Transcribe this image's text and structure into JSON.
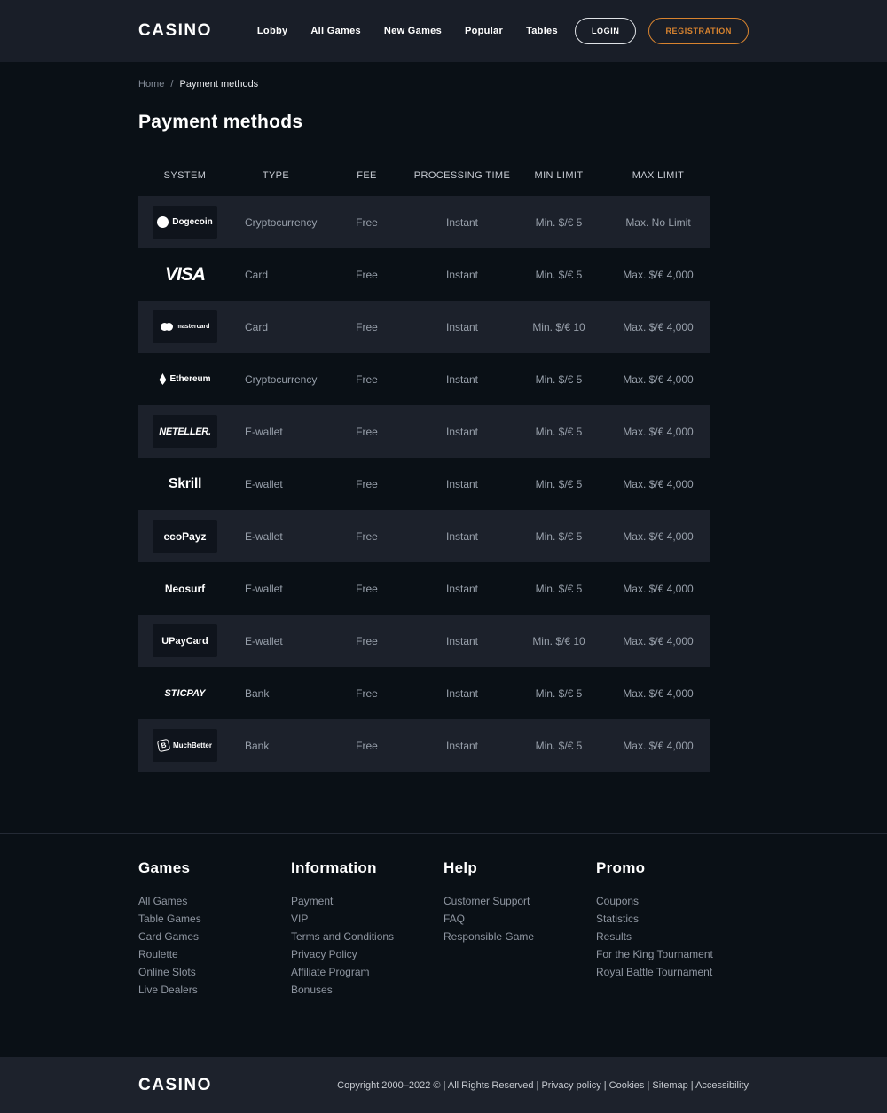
{
  "header": {
    "logo": "CASINO",
    "nav": [
      {
        "label": "Lobby"
      },
      {
        "label": "All Games"
      },
      {
        "label": "New Games"
      },
      {
        "label": "Popular"
      },
      {
        "label": "Tables"
      }
    ],
    "login_label": "LOGIN",
    "registration_label": "REGISTRATION"
  },
  "breadcrumb": {
    "home": "Home",
    "separator": "/",
    "current": "Payment methods"
  },
  "page": {
    "title": "Payment methods"
  },
  "table": {
    "headers": [
      "SYSTEM",
      "TYPE",
      "FEE",
      "PROCESSING TIME",
      "MIN LIMIT",
      "MAX LIMIT"
    ],
    "rows": [
      {
        "system": "Dogecoin",
        "logo": "dogecoin",
        "type": "Cryptocurrency",
        "fee": "Free",
        "processing_time": "Instant",
        "min_limit": "Min. $/€ 5",
        "max_limit": "Max. No Limit"
      },
      {
        "system": "VISA",
        "logo": "visa",
        "type": "Card",
        "fee": "Free",
        "processing_time": "Instant",
        "min_limit": "Min. $/€ 5",
        "max_limit": "Max. $/€ 4,000"
      },
      {
        "system": "mastercard",
        "logo": "mastercard",
        "type": "Card",
        "fee": "Free",
        "processing_time": "Instant",
        "min_limit": "Min. $/€ 10",
        "max_limit": "Max. $/€ 4,000"
      },
      {
        "system": "Ethereum",
        "logo": "ethereum",
        "type": "Cryptocurrency",
        "fee": "Free",
        "processing_time": "Instant",
        "min_limit": "Min. $/€ 5",
        "max_limit": "Max. $/€ 4,000"
      },
      {
        "system": "NETELLER.",
        "logo": "neteller",
        "type": "E-wallet",
        "fee": "Free",
        "processing_time": "Instant",
        "min_limit": "Min. $/€ 5",
        "max_limit": "Max. $/€ 4,000"
      },
      {
        "system": "Skrill",
        "logo": "skrill",
        "type": "E-wallet",
        "fee": "Free",
        "processing_time": "Instant",
        "min_limit": "Min. $/€ 5",
        "max_limit": "Max. $/€ 4,000"
      },
      {
        "system": "ecoPayz",
        "logo": "ecopayz",
        "type": "E-wallet",
        "fee": "Free",
        "processing_time": "Instant",
        "min_limit": "Min. $/€ 5",
        "max_limit": "Max. $/€ 4,000"
      },
      {
        "system": "Neosurf",
        "logo": "neosurf",
        "type": "E-wallet",
        "fee": "Free",
        "processing_time": "Instant",
        "min_limit": "Min. $/€ 5",
        "max_limit": "Max. $/€ 4,000"
      },
      {
        "system": "UPayCard",
        "logo": "upaycard",
        "type": "E-wallet",
        "fee": "Free",
        "processing_time": "Instant",
        "min_limit": "Min. $/€ 10",
        "max_limit": "Max. $/€ 4,000"
      },
      {
        "system": "STICPAY",
        "logo": "sticpay",
        "type": "Bank",
        "fee": "Free",
        "processing_time": "Instant",
        "min_limit": "Min. $/€ 5",
        "max_limit": "Max. $/€ 4,000"
      },
      {
        "system": "MuchBetter",
        "logo": "muchbetter",
        "type": "Bank",
        "fee": "Free",
        "processing_time": "Instant",
        "min_limit": "Min. $/€ 5",
        "max_limit": "Max. $/€ 4,000"
      }
    ]
  },
  "footer": {
    "columns": [
      {
        "title": "Games",
        "links": [
          "All Games",
          "Table Games",
          "Card Games",
          "Roulette",
          "Online Slots",
          "Live Dealers"
        ]
      },
      {
        "title": "Information",
        "links": [
          "Payment",
          "VIP",
          "Terms and Conditions",
          "Privacy Policy",
          "Affiliate Program",
          "Bonuses"
        ]
      },
      {
        "title": "Help",
        "links": [
          "Customer Support",
          "FAQ",
          "Responsible Game"
        ]
      },
      {
        "title": "Promo",
        "links": [
          "Coupons",
          "Statistics",
          "Results",
          "For the King Tournament",
          "Royal Battle Tournament"
        ]
      }
    ],
    "logo": "CASINO",
    "copyright": "Copyright 2000–2022 © | All Rights Reserved | Privacy policy | Cookies | Sitemap | Accessibility"
  },
  "colors": {
    "accent_orange": "#d7832f",
    "header_bg": "#191e28",
    "body_bg": "#0a1016",
    "row_alt_bg": "#1c212b",
    "badge_bg": "#0f141c",
    "muted_text": "#98a0ab"
  }
}
